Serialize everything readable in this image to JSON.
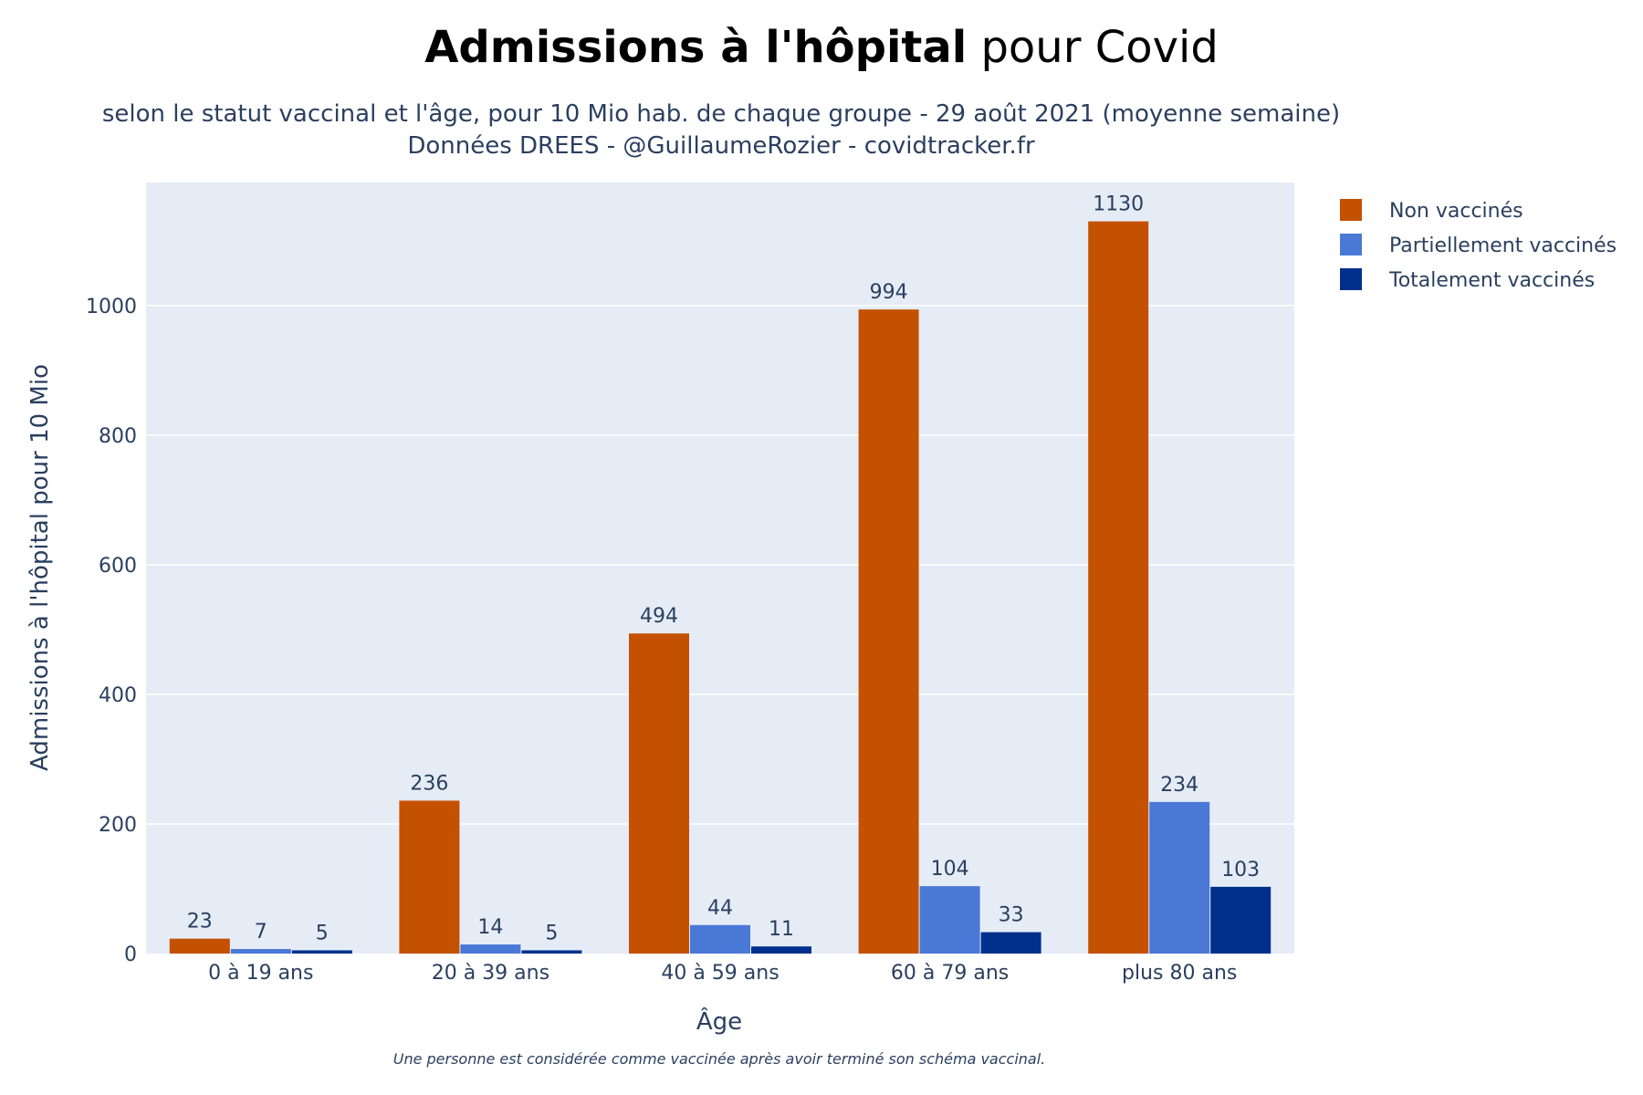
{
  "chart_data": {
    "type": "bar",
    "title_bold": "Admissions à l'hôpital",
    "title_rest": " pour Covid",
    "subtitle_line1": "selon le statut vaccinal et l'âge, pour 10 Mio hab. de chaque groupe - 29 août 2021 (moyenne semaine)",
    "subtitle_line2": "Données DREES - @GuillaumeRozier - covidtracker.fr",
    "xlabel": "Âge",
    "ylabel": "Admissions à l'hôpital pour 10 Mio",
    "footnote": "Une personne est considérée comme vaccinée après avoir terminé son schéma vaccinal.",
    "categories": [
      "0 à 19 ans",
      "20 à 39 ans",
      "40 à 59 ans",
      "60 à 79 ans",
      "plus 80 ans"
    ],
    "ylim": [
      0,
      1190
    ],
    "yticks": [
      0,
      200,
      400,
      600,
      800,
      1000
    ],
    "grid": true,
    "legend_position": "top-right",
    "series": [
      {
        "name": "Non vaccinés",
        "color": "#c45100",
        "values": [
          23,
          236,
          494,
          994,
          1130
        ]
      },
      {
        "name": "Partiellement vaccinés",
        "color": "#4a78d6",
        "values": [
          7,
          14,
          44,
          104,
          234
        ]
      },
      {
        "name": "Totalement vaccinés",
        "color": "#00308c",
        "values": [
          5,
          5,
          11,
          33,
          103
        ]
      }
    ],
    "plot_background": "#e5ecf6"
  }
}
